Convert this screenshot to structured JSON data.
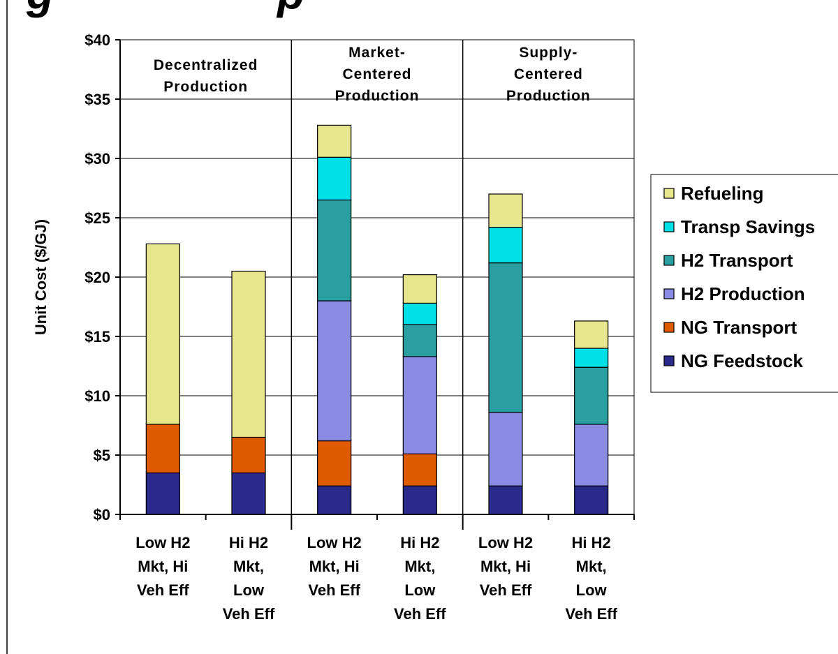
{
  "title_fragment": "g                  p",
  "colors": {
    "title": "#1a1aa6",
    "NG Feedstock": "#2a2a8c",
    "NG Transport": "#e05a00",
    "H2 Production": "#8b8be6",
    "H2 Transport": "#2a9f9f",
    "Transp Savings": "#00e0e8",
    "Refueling": "#e6e68c"
  },
  "chart_data": {
    "type": "bar",
    "stacked": true,
    "title": "",
    "ylabel": "Unit Cost ($/GJ)",
    "xlabel": "",
    "ylim": [
      0,
      40
    ],
    "yticks": [
      "$0",
      "$5",
      "$10",
      "$15",
      "$20",
      "$25",
      "$30",
      "$35",
      "$40"
    ],
    "ytick_values": [
      0,
      5,
      10,
      15,
      20,
      25,
      30,
      35,
      40
    ],
    "grid": true,
    "legend_position": "right",
    "categories": [
      [
        "Low H2",
        "Mkt, Hi",
        "Veh Eff"
      ],
      [
        "Hi H2",
        "Mkt,",
        "Low",
        "Veh Eff"
      ],
      [
        "Low H2",
        "Mkt, Hi",
        "Veh Eff"
      ],
      [
        "Hi H2",
        "Mkt,",
        "Low",
        "Veh Eff"
      ],
      [
        "Low H2",
        "Mkt, Hi",
        "Veh Eff"
      ],
      [
        "Hi H2",
        "Mkt,",
        "Low",
        "Veh Eff"
      ]
    ],
    "groups": [
      {
        "label": [
          "Decentralized",
          "Production"
        ],
        "categories": [
          0,
          1
        ]
      },
      {
        "label": [
          "Market-",
          "Centered",
          "Production"
        ],
        "categories": [
          2,
          3
        ]
      },
      {
        "label": [
          "Supply-",
          "Centered",
          "Production"
        ],
        "categories": [
          4,
          5
        ]
      }
    ],
    "series": [
      {
        "name": "NG Feedstock",
        "values": [
          3.5,
          3.5,
          2.4,
          2.4,
          2.4,
          2.4
        ]
      },
      {
        "name": "NG Transport",
        "values": [
          4.1,
          3.0,
          3.8,
          2.7,
          0,
          0
        ]
      },
      {
        "name": "H2 Production",
        "values": [
          0,
          0,
          11.8,
          8.2,
          6.2,
          5.2
        ]
      },
      {
        "name": "H2 Transport",
        "values": [
          0,
          0,
          8.5,
          2.7,
          12.6,
          4.8
        ]
      },
      {
        "name": "Transp Savings",
        "values": [
          0,
          0,
          3.6,
          1.8,
          3.0,
          1.6
        ]
      },
      {
        "name": "Refueling",
        "values": [
          15.2,
          14.0,
          2.7,
          2.4,
          2.8,
          2.3
        ]
      }
    ],
    "legend_order": [
      "Refueling",
      "Transp Savings",
      "H2 Transport",
      "H2 Production",
      "NG Transport",
      "NG Feedstock"
    ]
  }
}
